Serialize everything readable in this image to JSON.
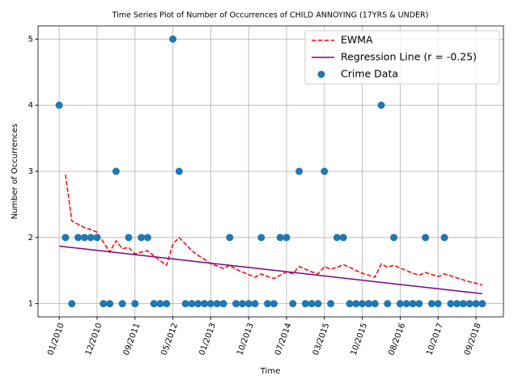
{
  "chart_data": {
    "type": "scatter",
    "title": "Time Series Plot of Number of Occurrences of CHILD ANNOYING (17YRS & UNDER)",
    "xlabel": "Time",
    "ylabel": "Number of Occurrences",
    "x": [
      0,
      1,
      2,
      3,
      4,
      5,
      6,
      7,
      8,
      9,
      10,
      11,
      12,
      13,
      14,
      15,
      16,
      17,
      18,
      19,
      20,
      21,
      22,
      23,
      24,
      25,
      26,
      27,
      28,
      29,
      30,
      31,
      32,
      33,
      34,
      35,
      36,
      37,
      38,
      39,
      40,
      41,
      42,
      43,
      44,
      45,
      46,
      47,
      48,
      49,
      50,
      51,
      52,
      53,
      54,
      55,
      56,
      57,
      58,
      59,
      60,
      61,
      62,
      63,
      64,
      65,
      66,
      67
    ],
    "series": [
      {
        "name": "EWMA",
        "type": "line",
        "color": "#ff0000",
        "dash": true,
        "values": [
          null,
          2.95,
          2.25,
          2.2,
          2.15,
          2.12,
          2.08,
          1.93,
          1.78,
          1.95,
          1.83,
          1.85,
          1.75,
          1.78,
          1.8,
          1.72,
          1.65,
          1.58,
          1.9,
          2.0,
          1.9,
          1.8,
          1.73,
          1.67,
          1.6,
          1.57,
          1.53,
          1.58,
          1.52,
          1.48,
          1.44,
          1.4,
          1.45,
          1.41,
          1.38,
          1.43,
          1.48,
          1.45,
          1.56,
          1.52,
          1.48,
          1.45,
          1.56,
          1.52,
          1.55,
          1.59,
          1.55,
          1.5,
          1.46,
          1.43,
          1.4,
          1.6,
          1.55,
          1.58,
          1.54,
          1.5,
          1.46,
          1.43,
          1.47,
          1.44,
          1.41,
          1.45,
          1.42,
          1.39,
          1.36,
          1.33,
          1.31,
          1.28
        ]
      },
      {
        "name": "Regression Line (r = -0.25)",
        "type": "line",
        "color": "#800080",
        "x": [
          0,
          67
        ],
        "values": [
          1.87,
          1.15
        ]
      },
      {
        "name": "Crime Data",
        "type": "scatter",
        "color": "#1f77b4",
        "values": [
          4,
          2,
          1,
          2,
          2,
          2,
          2,
          1,
          1,
          3,
          1,
          2,
          1,
          2,
          2,
          1,
          1,
          1,
          5,
          3,
          1,
          1,
          1,
          1,
          1,
          1,
          1,
          2,
          1,
          1,
          1,
          1,
          2,
          1,
          1,
          2,
          2,
          1,
          3,
          1,
          1,
          1,
          3,
          1,
          2,
          2,
          1,
          1,
          1,
          1,
          1,
          4,
          1,
          2,
          1,
          1,
          1,
          1,
          2,
          1,
          1,
          2,
          1,
          1,
          1,
          1,
          1,
          1
        ]
      }
    ],
    "xlim": [
      -3.35,
      70.35
    ],
    "ylim": [
      0.8,
      5.2
    ],
    "xticks": [
      {
        "value": 0,
        "label": "01/2010"
      },
      {
        "value": 6,
        "label": "12/2010"
      },
      {
        "value": 12,
        "label": "09/2011"
      },
      {
        "value": 18,
        "label": "05/2012"
      },
      {
        "value": 24,
        "label": "01/2013"
      },
      {
        "value": 30,
        "label": "10/2013"
      },
      {
        "value": 36,
        "label": "07/2014"
      },
      {
        "value": 42,
        "label": "03/2015"
      },
      {
        "value": 48,
        "label": "10/2015"
      },
      {
        "value": 54,
        "label": "08/2016"
      },
      {
        "value": 60,
        "label": "10/2017"
      },
      {
        "value": 66,
        "label": "09/2018"
      }
    ],
    "yticks": [
      1,
      2,
      3,
      4,
      5
    ],
    "grid": true,
    "legend": "upper-right"
  }
}
